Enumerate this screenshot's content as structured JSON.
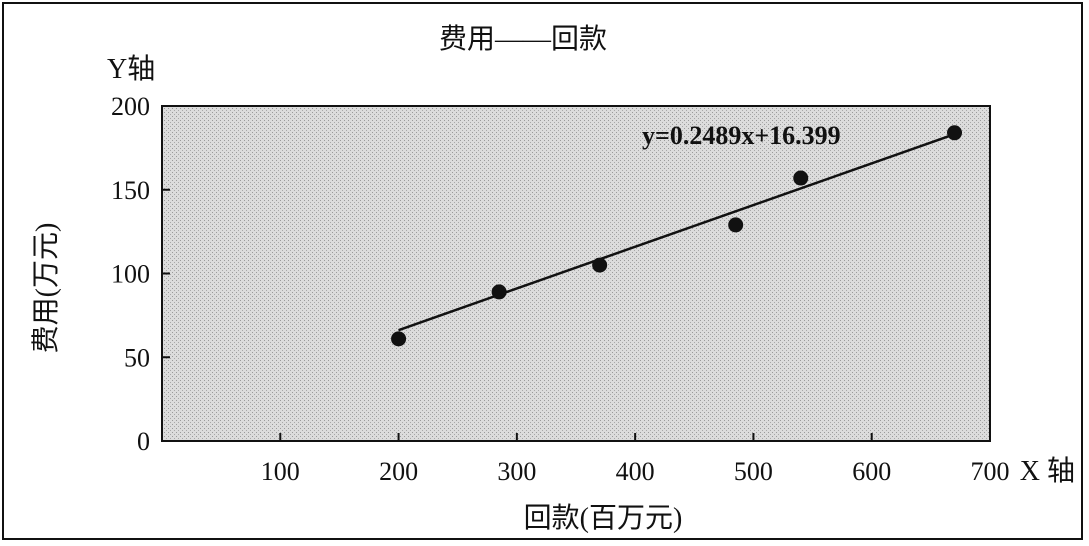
{
  "chart_data": {
    "type": "scatter",
    "title": "费用——回款",
    "xlabel": "回款(百万元)",
    "ylabel": "费用(万元)",
    "x_axis_name": "X 轴",
    "y_axis_name": "Y轴",
    "xlim": [
      0,
      700
    ],
    "ylim": [
      0,
      200
    ],
    "xticks": [
      100,
      200,
      300,
      400,
      500,
      600,
      700
    ],
    "yticks": [
      0,
      50,
      100,
      150,
      200
    ],
    "grid": false,
    "points": [
      {
        "x": 200,
        "y": 61
      },
      {
        "x": 285,
        "y": 89
      },
      {
        "x": 370,
        "y": 105
      },
      {
        "x": 485,
        "y": 129
      },
      {
        "x": 540,
        "y": 157
      },
      {
        "x": 670,
        "y": 184
      }
    ],
    "trendline": {
      "equation": "y=0.2489x+16.399",
      "slope": 0.2489,
      "intercept": 16.399,
      "x_range": [
        200,
        670
      ]
    },
    "colors": {
      "plot_background": "#d9d9d9",
      "marks": "#111111"
    }
  }
}
